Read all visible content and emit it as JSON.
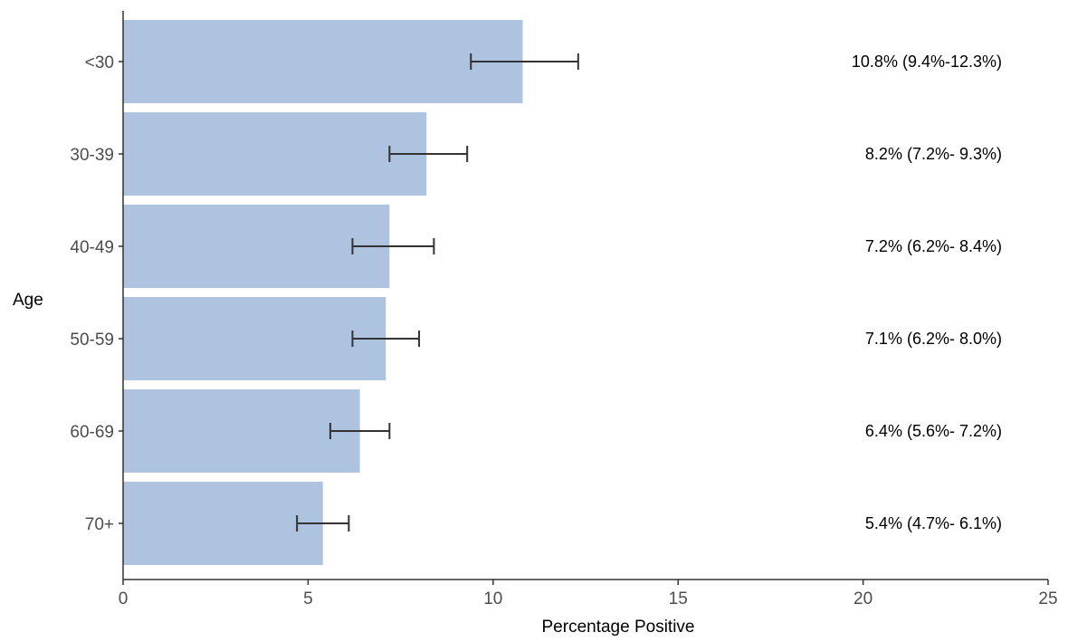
{
  "chart_data": {
    "type": "bar",
    "orientation": "horizontal",
    "title": "",
    "xlabel": "Percentage Positive",
    "ylabel": "Age",
    "xlim": [
      0,
      25
    ],
    "x_ticks": [
      0,
      5,
      10,
      15,
      20,
      25
    ],
    "categories": [
      "<30",
      "30-39",
      "40-49",
      "50-59",
      "60-69",
      "70+"
    ],
    "values": [
      10.8,
      8.2,
      7.2,
      7.1,
      6.4,
      5.4
    ],
    "ci_lower": [
      9.4,
      7.2,
      6.2,
      6.2,
      5.6,
      4.7
    ],
    "ci_upper": [
      12.3,
      9.3,
      8.4,
      8.0,
      7.2,
      6.1
    ],
    "data_labels": [
      "10.8% (9.4%-12.3%)",
      "8.2% (7.2%- 9.3%)",
      "7.2% (6.2%- 8.4%)",
      "7.1% (6.2%- 8.0%)",
      "6.4% (5.6%- 7.2%)",
      "5.4% (4.7%- 6.1%)"
    ],
    "grid": false,
    "bar_color": "#aec3e0",
    "errorbar_color": "#333333",
    "axis_color": "#333333"
  }
}
